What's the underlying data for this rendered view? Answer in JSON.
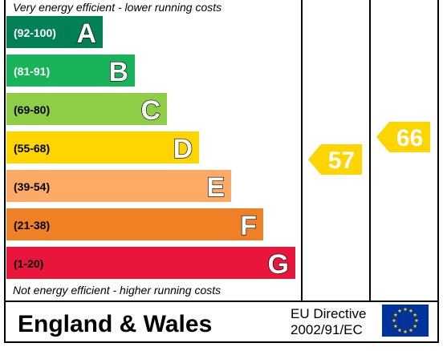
{
  "chart_data": {
    "type": "bar",
    "top_caption": "Very energy efficient - lower running costs",
    "bottom_caption": "Not energy efficient - higher running costs",
    "bands": [
      {
        "range": "(92-100)",
        "letter": "A",
        "color": "#008054",
        "range_color": "#ffffff"
      },
      {
        "range": "(81-91)",
        "letter": "B",
        "color": "#19b459",
        "range_color": "#ffffff"
      },
      {
        "range": "(69-80)",
        "letter": "C",
        "color": "#8dce46",
        "range_color": "#000000"
      },
      {
        "range": "(55-68)",
        "letter": "D",
        "color": "#ffd500",
        "range_color": "#000000"
      },
      {
        "range": "(39-54)",
        "letter": "E",
        "color": "#fcaa65",
        "range_color": "#000000"
      },
      {
        "range": "(21-38)",
        "letter": "F",
        "color": "#ef8023",
        "range_color": "#000000"
      },
      {
        "range": "(1-20)",
        "letter": "G",
        "color": "#e9153b",
        "range_color": "#000000"
      }
    ],
    "current_rating": {
      "value": 57,
      "band": "D",
      "color": "#ffd500"
    },
    "potential_rating": {
      "value": 66,
      "band": "D",
      "color": "#ffd500"
    }
  },
  "footer": {
    "region": "England & Wales",
    "directive_line1": "EU Directive",
    "directive_line2": "2002/91/EC",
    "flag_icon": "eu-flag-icon",
    "flag_color": "#003399",
    "star_color": "#ffcc00"
  }
}
